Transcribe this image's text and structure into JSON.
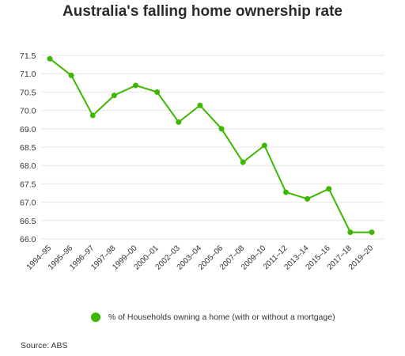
{
  "chart_data": {
    "type": "line",
    "title": "Australia's falling home ownership rate",
    "categories": [
      "1994–95",
      "1995–96",
      "1996–97",
      "1997–98",
      "1999–00",
      "2000–01",
      "2002–03",
      "2003–04",
      "2005–06",
      "2007–08",
      "2009–10",
      "2011–12",
      "2013–14",
      "2015–16",
      "2017–18",
      "2019–20"
    ],
    "series": [
      {
        "name": "% of Households owning a home (with or without a mortgage)",
        "values": [
          71.4,
          70.9,
          69.7,
          70.3,
          70.6,
          70.4,
          69.5,
          70.0,
          69.3,
          68.3,
          68.8,
          67.4,
          67.2,
          67.5,
          66.2,
          66.2
        ]
      }
    ],
    "yticks": [
      "71.5",
      "71.0",
      "70.5",
      "70.0",
      "69.0",
      "68.5",
      "68.0",
      "67.5",
      "67.0",
      "66.5",
      "66.0"
    ],
    "ylim": [
      66.0,
      71.5
    ],
    "grid": true,
    "legend_position": "bottom",
    "color": "#3cb800"
  },
  "source": "Source: ABS"
}
